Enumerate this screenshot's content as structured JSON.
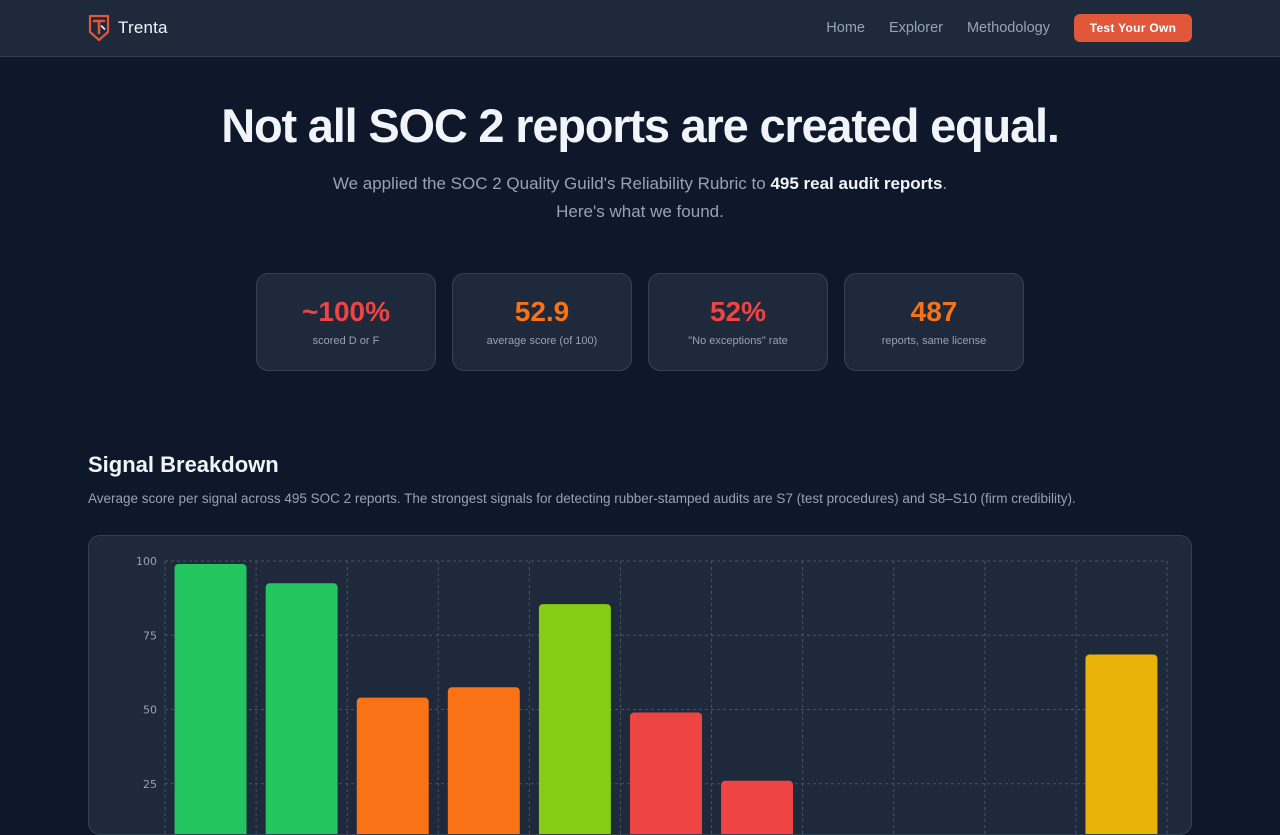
{
  "nav": {
    "brand": "Trenta",
    "links": [
      "Home",
      "Explorer",
      "Methodology"
    ],
    "cta": "Test Your Own"
  },
  "hero": {
    "title": "Not all SOC 2 reports are created equal.",
    "sub_before": "We applied the SOC 2 Quality Guild's Reliability Rubric to ",
    "sub_strong": "495 real audit reports",
    "sub_after": ".",
    "sub_line2": "Here's what we found."
  },
  "stats": [
    {
      "value": "~100%",
      "label": "scored D or F",
      "color": "#ef4444"
    },
    {
      "value": "52.9",
      "label": "average score (of 100)",
      "color": "#f97316"
    },
    {
      "value": "52%",
      "label": "\"No exceptions\" rate",
      "color": "#ef4444"
    },
    {
      "value": "487",
      "label": "reports, same license",
      "color": "#f97316"
    }
  ],
  "section": {
    "title": "Signal Breakdown",
    "description": "Average score per signal across 495 SOC 2 reports. The strongest signals for detecting rubber-stamped audits are S7 (test procedures) and S8–S10 (firm credibility)."
  },
  "chart_data": {
    "type": "bar",
    "ylim": [
      0,
      100
    ],
    "y_ticks": [
      100,
      75,
      50,
      25
    ],
    "grid": true,
    "values": [
      99,
      92.5,
      54,
      57.5,
      85.5,
      49,
      26,
      0,
      0,
      0,
      68.5
    ],
    "colors": [
      "#22c55e",
      "#22c55e",
      "#f97316",
      "#f97316",
      "#84cc16",
      "#ef4444",
      "#ef4444",
      "#ef4444",
      "#ef4444",
      "#ef4444",
      "#eab308"
    ]
  }
}
